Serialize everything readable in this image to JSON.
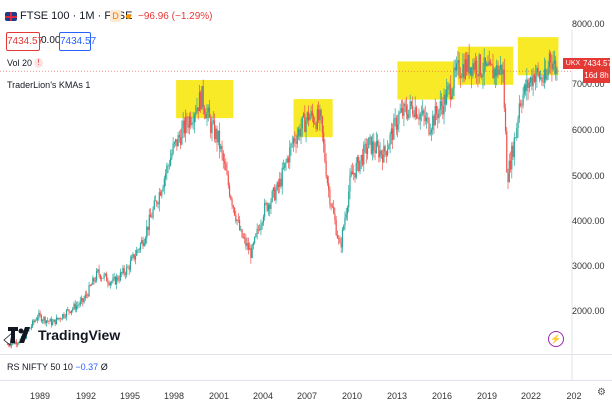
{
  "header": {
    "symbol_line": "FTSE 100 · 1M · FTSE",
    "d_badge": "D",
    "change": "−96.96 (−1.29%)"
  },
  "order": {
    "sell": "7434.57",
    "spread": "0.00",
    "buy": "7434.57"
  },
  "indicators": {
    "vol": "Vol 20",
    "vol_warn": "!",
    "kmas": "TraderLion's KMAs 1"
  },
  "price_tag": {
    "symbol": "UKX",
    "price": "7434.57",
    "countdown": "16d 8h"
  },
  "y_axis": [
    "8000.00",
    "7000.00",
    "6000.00",
    "5000.00",
    "4000.00",
    "3000.00",
    "2000.00"
  ],
  "x_axis": [
    "1989",
    "1992",
    "1995",
    "1998",
    "2001",
    "2004",
    "2007",
    "2010",
    "2013",
    "2016",
    "2019",
    "2022",
    "202"
  ],
  "logo": {
    "text": "TradingView"
  },
  "rs": {
    "label": "RS NIFTY 50 10",
    "value": "−0.37",
    "suffix": "Ø"
  },
  "colors": {
    "up": "#26a69a",
    "down": "#ef5350",
    "highlight": "#f7e600",
    "accent": "#2962ff"
  },
  "chart_data": {
    "type": "line",
    "title": "",
    "xlabel": "",
    "ylabel": "",
    "ylim": [
      1500,
      8300
    ],
    "xlim": [
      1986.5,
      2024.5
    ],
    "series": [
      {
        "x": [
          1987,
          1988,
          1989,
          1990,
          1991,
          1992,
          1993,
          1994,
          1995,
          1996,
          1997,
          1998,
          1999,
          1999.9,
          2000.5,
          2001,
          2001.7,
          2002.5,
          2003.2,
          2004,
          2005,
          2006,
          2007,
          2007.8,
          2008.3,
          2009.1,
          2009.8,
          2010.5,
          2011,
          2012,
          2013,
          2014,
          2015,
          2016,
          2017,
          2018,
          2019,
          2019.9,
          2020.2,
          2020.8,
          2021,
          2022,
          2022.8,
          2023,
          2023.5
        ],
        "values": [
          1700,
          1800,
          2300,
          2150,
          2400,
          2600,
          3200,
          3000,
          3300,
          3900,
          4800,
          5800,
          6400,
          6900,
          6300,
          6000,
          5000,
          4000,
          3600,
          4500,
          5000,
          6000,
          6500,
          6400,
          5000,
          3700,
          5200,
          5600,
          5900,
          5700,
          6500,
          6700,
          6300,
          6800,
          7500,
          7600,
          7400,
          7500,
          5200,
          6200,
          6800,
          7400,
          7200,
          7800,
          7434.57
        ]
      }
    ],
    "highlights": [
      {
        "x_start": 1998.2,
        "x_end": 2002.0
      },
      {
        "x_start": 2006.0,
        "x_end": 2008.6
      },
      {
        "x_start": 2012.9,
        "x_end": 2016.7
      },
      {
        "x_start": 2016.9,
        "x_end": 2020.6
      },
      {
        "x_start": 2020.9,
        "x_end": 2023.6
      }
    ],
    "last_price": 7434.57
  }
}
